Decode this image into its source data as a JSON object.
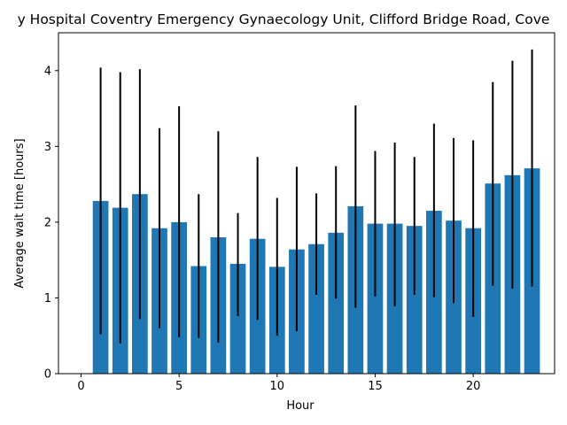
{
  "chart_data": {
    "type": "bar",
    "title": "y Hospital Coventry Emergency Gynaecology Unit, Clifford Bridge Road, Cove",
    "xlabel": "Hour",
    "ylabel": "Average wait time [hours]",
    "xlim": [
      -1.15,
      24.15
    ],
    "ylim": [
      0,
      4.5
    ],
    "xticks": [
      0,
      5,
      10,
      15,
      20
    ],
    "yticks": [
      0,
      1,
      2,
      3,
      4
    ],
    "grid": false,
    "bar_color": "#1f77b4",
    "error_color": "#000000",
    "x": [
      1,
      2,
      3,
      4,
      5,
      6,
      7,
      8,
      9,
      10,
      11,
      12,
      13,
      14,
      15,
      16,
      17,
      18,
      19,
      20,
      21,
      22,
      23
    ],
    "values": [
      2.28,
      2.19,
      2.37,
      1.92,
      2.0,
      1.42,
      1.8,
      1.45,
      1.78,
      1.41,
      1.64,
      1.71,
      1.86,
      2.21,
      1.98,
      1.98,
      1.95,
      2.15,
      2.02,
      1.92,
      2.51,
      2.62,
      2.71
    ],
    "error_low": [
      0.52,
      0.4,
      0.72,
      0.6,
      0.48,
      0.47,
      0.41,
      0.76,
      0.71,
      0.5,
      0.56,
      1.04,
      0.99,
      0.87,
      1.02,
      0.89,
      1.04,
      1.01,
      0.93,
      0.75,
      1.16,
      1.12,
      1.15
    ],
    "error_high": [
      4.04,
      3.98,
      4.02,
      3.24,
      3.53,
      2.37,
      3.2,
      2.12,
      2.86,
      2.32,
      2.73,
      2.38,
      2.74,
      3.54,
      2.94,
      3.05,
      2.86,
      3.3,
      3.11,
      3.08,
      3.85,
      4.13,
      4.28
    ]
  }
}
